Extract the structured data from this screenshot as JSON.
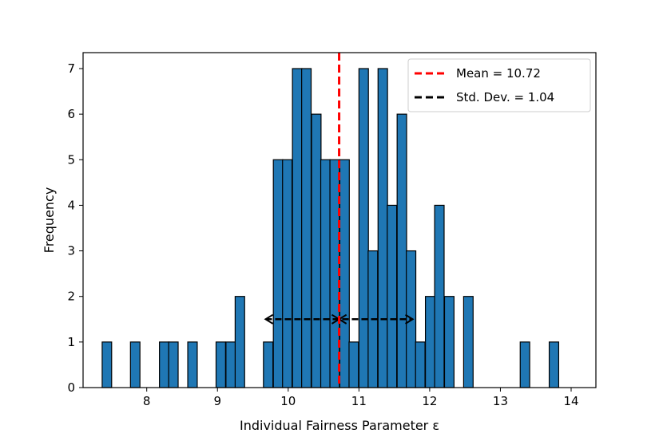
{
  "chart_data": {
    "type": "bar",
    "xlabel": "Individual Fairness Parameter ε",
    "ylabel": "Frequency",
    "xlim": [
      7.1,
      14.35
    ],
    "ylim": [
      0,
      7.35
    ],
    "xticks": [
      8,
      9,
      10,
      11,
      12,
      13,
      14
    ],
    "yticks": [
      0,
      1,
      2,
      3,
      4,
      5,
      6,
      7
    ],
    "bin_width": 0.134,
    "bar_color": "#1f77b4",
    "edge_color": "#000000",
    "bins": [
      {
        "x": 7.37,
        "value": 1
      },
      {
        "x": 7.5,
        "value": 0
      },
      {
        "x": 7.64,
        "value": 0
      },
      {
        "x": 7.77,
        "value": 1
      },
      {
        "x": 7.91,
        "value": 0
      },
      {
        "x": 8.04,
        "value": 0
      },
      {
        "x": 8.18,
        "value": 1
      },
      {
        "x": 8.31,
        "value": 1
      },
      {
        "x": 8.45,
        "value": 0
      },
      {
        "x": 8.58,
        "value": 1
      },
      {
        "x": 8.71,
        "value": 0
      },
      {
        "x": 8.85,
        "value": 0
      },
      {
        "x": 8.98,
        "value": 1
      },
      {
        "x": 9.12,
        "value": 1
      },
      {
        "x": 9.25,
        "value": 2
      },
      {
        "x": 9.39,
        "value": 0
      },
      {
        "x": 9.52,
        "value": 0
      },
      {
        "x": 9.65,
        "value": 1
      },
      {
        "x": 9.79,
        "value": 5
      },
      {
        "x": 9.92,
        "value": 5
      },
      {
        "x": 10.06,
        "value": 7
      },
      {
        "x": 10.19,
        "value": 7
      },
      {
        "x": 10.33,
        "value": 6
      },
      {
        "x": 10.46,
        "value": 5
      },
      {
        "x": 10.59,
        "value": 5
      },
      {
        "x": 10.73,
        "value": 5
      },
      {
        "x": 10.86,
        "value": 1
      },
      {
        "x": 11.0,
        "value": 7
      },
      {
        "x": 11.13,
        "value": 3
      },
      {
        "x": 11.27,
        "value": 7
      },
      {
        "x": 11.4,
        "value": 4
      },
      {
        "x": 11.54,
        "value": 6
      },
      {
        "x": 11.67,
        "value": 3
      },
      {
        "x": 11.8,
        "value": 1
      },
      {
        "x": 11.94,
        "value": 2
      },
      {
        "x": 12.07,
        "value": 4
      },
      {
        "x": 12.21,
        "value": 2
      },
      {
        "x": 12.34,
        "value": 0
      },
      {
        "x": 12.48,
        "value": 2
      },
      {
        "x": 12.61,
        "value": 0
      },
      {
        "x": 12.74,
        "value": 0
      },
      {
        "x": 12.88,
        "value": 0
      },
      {
        "x": 13.01,
        "value": 0
      },
      {
        "x": 13.15,
        "value": 0
      },
      {
        "x": 13.28,
        "value": 1
      },
      {
        "x": 13.42,
        "value": 0
      },
      {
        "x": 13.55,
        "value": 0
      },
      {
        "x": 13.69,
        "value": 1
      }
    ],
    "mean": {
      "value": 10.72,
      "color": "#ff0000",
      "legend": "Mean = 10.72"
    },
    "std_dev": {
      "value": 1.04,
      "y": 1.5,
      "color": "#000000",
      "legend": "Std. Dev. = 1.04"
    },
    "legend_position": "top-right"
  }
}
